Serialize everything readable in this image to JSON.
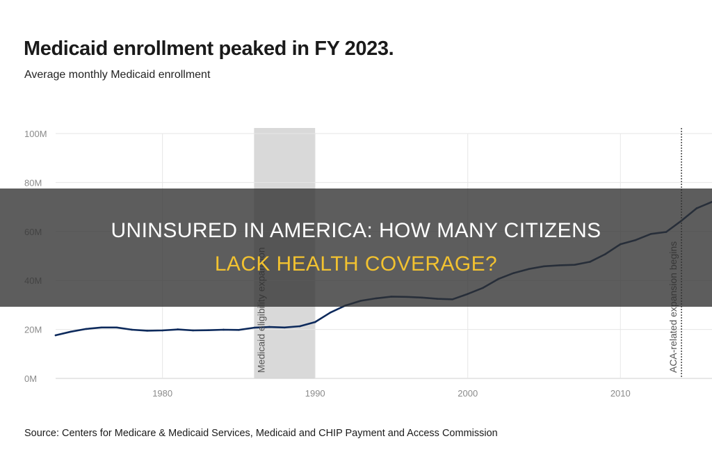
{
  "header": {
    "title": "Medicaid enrollment peaked in FY 2023.",
    "subtitle": "Average monthly Medicaid enrollment"
  },
  "footer": {
    "source": "Source: Centers for Medicare & Medicaid Services, Medicaid and CHIP Payment and Access Commission"
  },
  "overlay": {
    "line1": "Uninsured in America: How Many Citizens",
    "line2": "Lack Health Coverage?",
    "line2_color": "#f2c230"
  },
  "chart_data": {
    "type": "line",
    "title": "Medicaid enrollment peaked in FY 2023.",
    "subtitle": "Average monthly Medicaid enrollment",
    "xlabel": "",
    "ylabel": "",
    "xlim": [
      1973,
      2016
    ],
    "ylim": [
      0,
      100
    ],
    "x_ticks": [
      1980,
      1990,
      2000,
      2010
    ],
    "y_ticks": [
      0,
      20,
      40,
      60,
      80,
      100
    ],
    "y_tick_labels": [
      "0M",
      "20M",
      "40M",
      "60M",
      "80M",
      "100M"
    ],
    "grid": true,
    "line_color": "#0d2a5c",
    "series": [
      {
        "name": "",
        "x": [
          1973,
          1974,
          1975,
          1976,
          1977,
          1978,
          1979,
          1980,
          1981,
          1982,
          1983,
          1984,
          1985,
          1986,
          1987,
          1988,
          1989,
          1990,
          1991,
          1992,
          1993,
          1994,
          1995,
          1996,
          1997,
          1998,
          1999,
          2000,
          2001,
          2002,
          2003,
          2004,
          2005,
          2006,
          2007,
          2008,
          2009,
          2010,
          2011,
          2012,
          2013,
          2014,
          2015,
          2016
        ],
        "values": [
          17.6,
          19.1,
          20.2,
          20.8,
          20.8,
          19.9,
          19.5,
          19.6,
          20.0,
          19.6,
          19.7,
          19.9,
          19.8,
          20.7,
          21.0,
          20.8,
          21.3,
          23.0,
          26.9,
          29.8,
          31.7,
          32.7,
          33.4,
          33.3,
          33.0,
          32.5,
          32.3,
          34.5,
          37.0,
          40.6,
          43.0,
          44.7,
          45.8,
          46.2,
          46.4,
          47.6,
          50.7,
          54.8,
          56.5,
          59.0,
          59.8,
          64.4,
          69.5,
          72.1
        ]
      }
    ],
    "annotations": [
      {
        "type": "shaded_region",
        "x_start": 1986,
        "x_end": 1990,
        "label": "Medicaid eligibility expansion",
        "color": "#d9d9d9"
      },
      {
        "type": "vertical_line",
        "x": 2014,
        "label": "ACA-related expansion begins",
        "style": "dotted"
      }
    ]
  }
}
